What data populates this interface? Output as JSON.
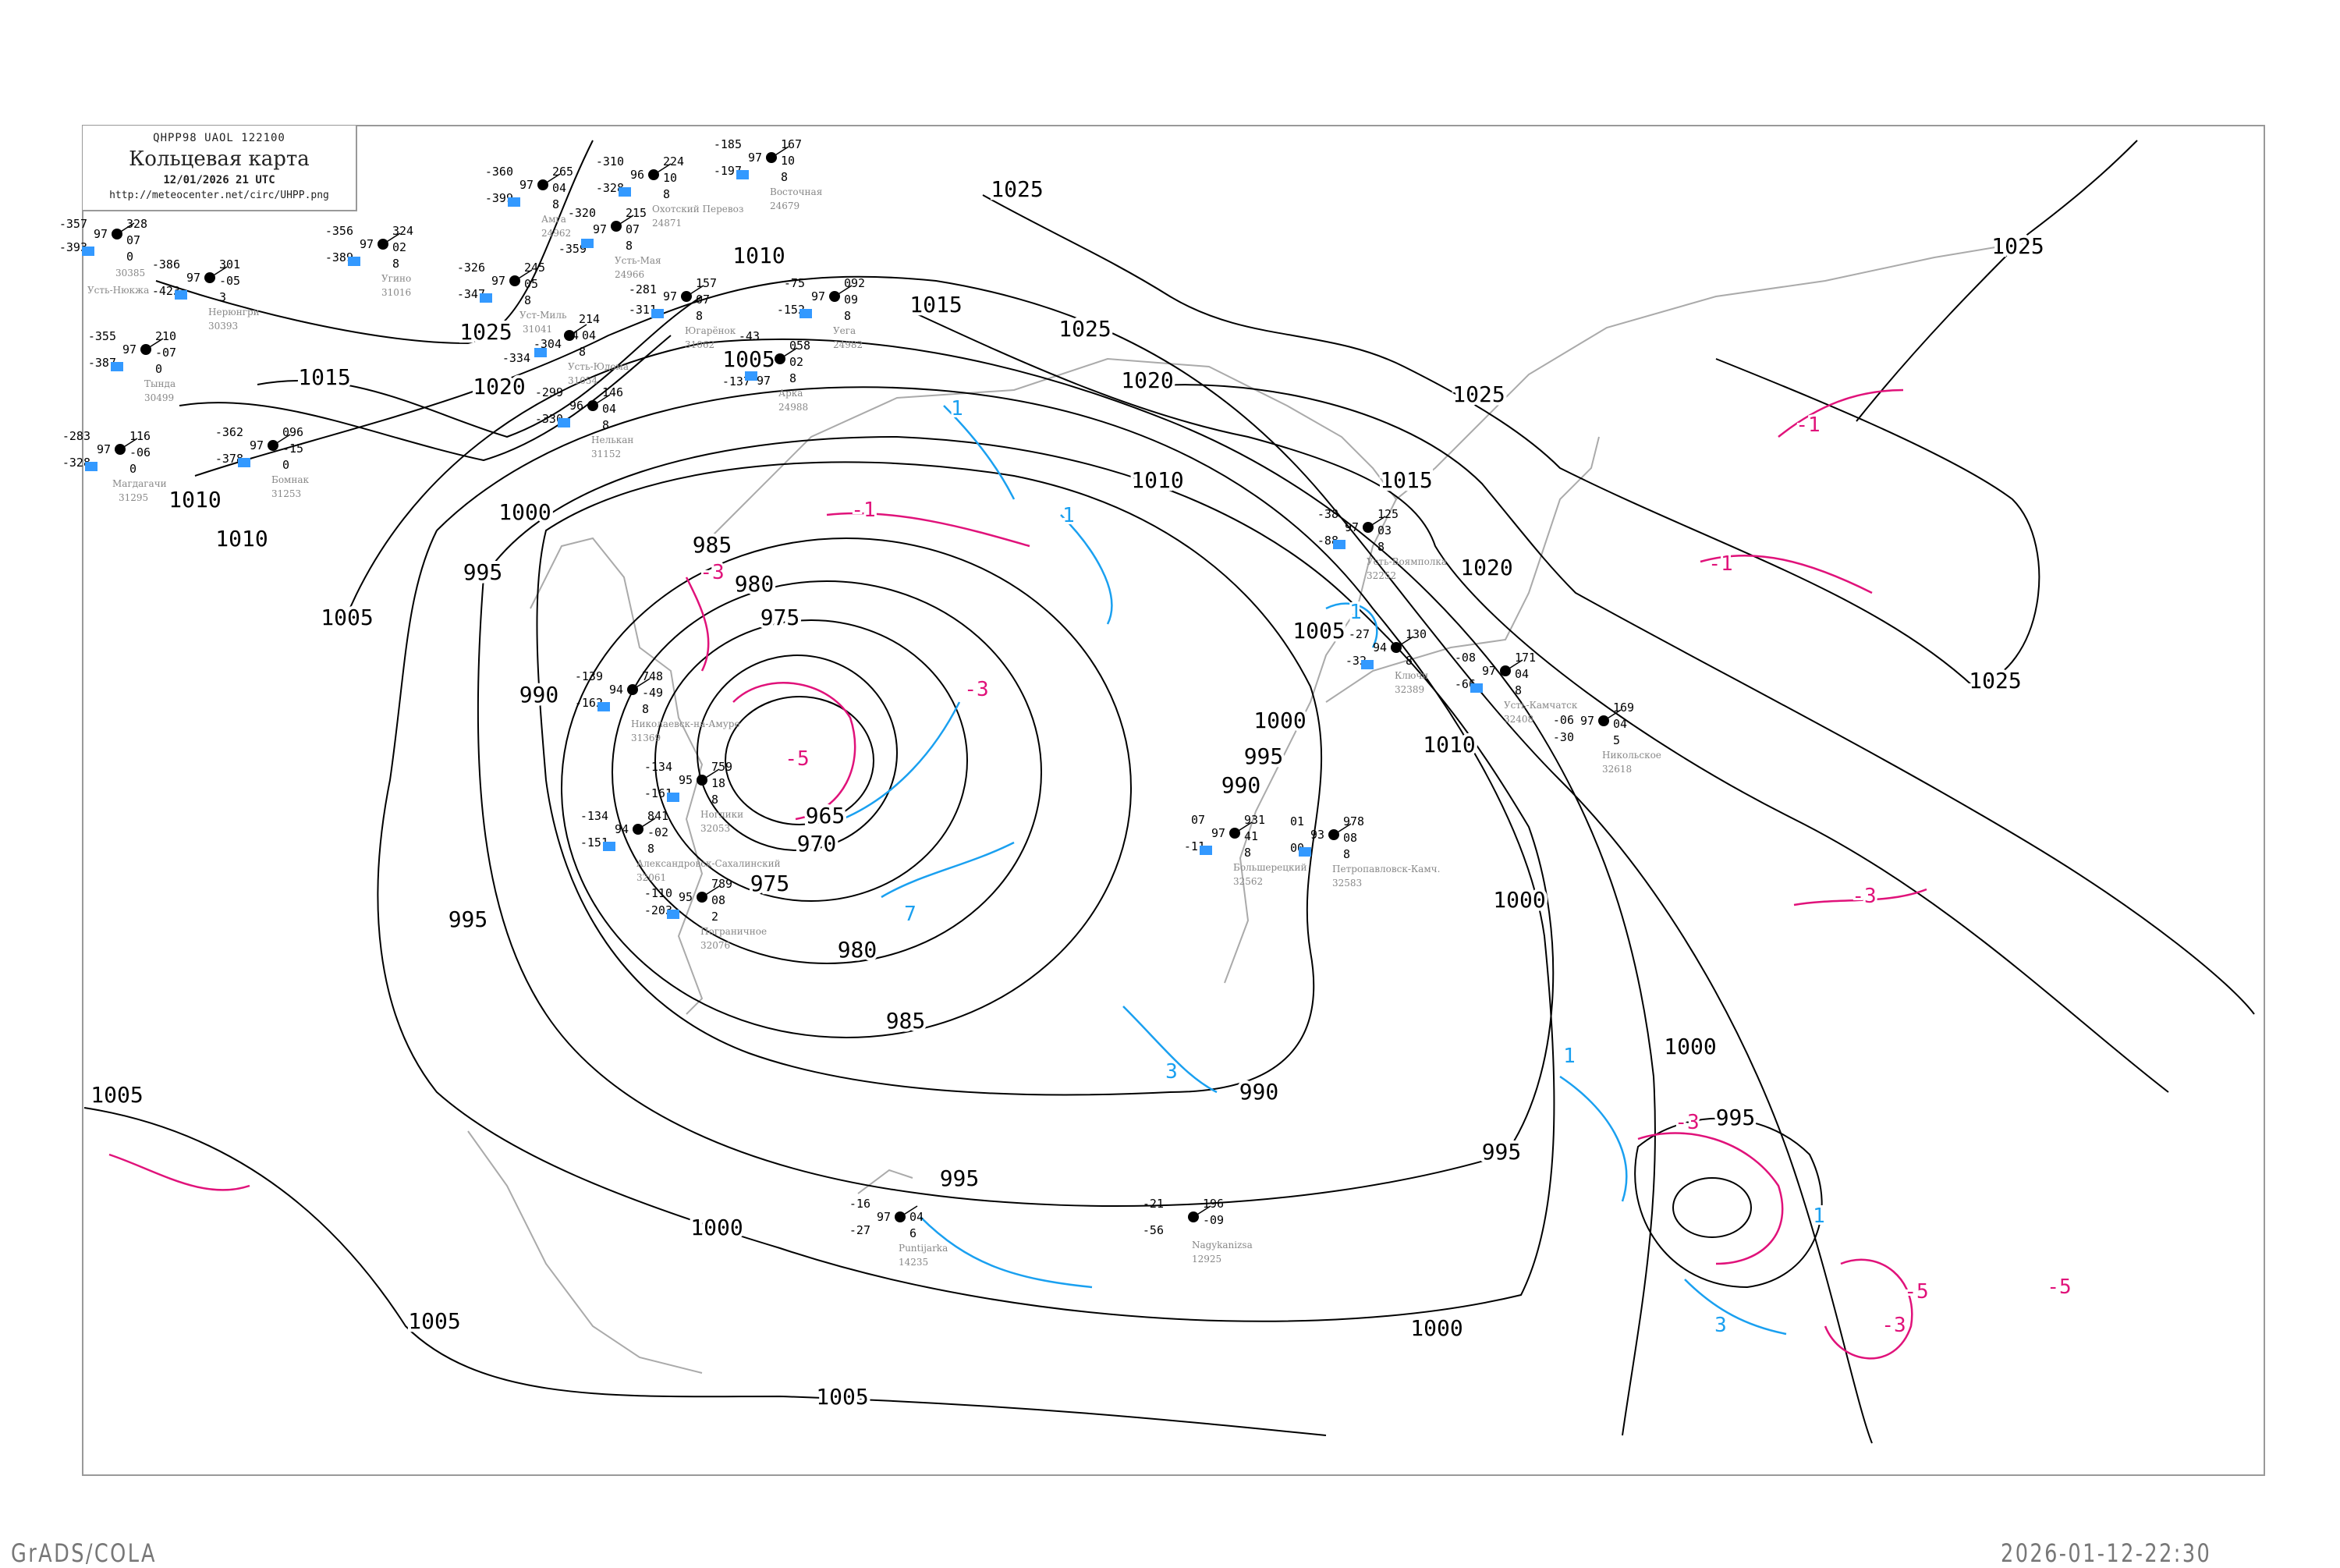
{
  "header": {
    "code_line": "QHPP98  UAOL  122100",
    "title": "Кольцевая карта",
    "datetime": "12/01/2026 21 UTC",
    "url": "http://meteocenter.net/circ/UHPP.png"
  },
  "footer": {
    "left": "GrADS/COLA",
    "right": "2026-01-12-22:30"
  },
  "colors": {
    "isobar": "#000000",
    "isotherm_negative": "#e0127a",
    "isotherm_positive": "#1aa0f0",
    "coastline": "#aaaaaa",
    "station_marker": "#3399ff"
  },
  "isobar_labels": [
    "1025",
    "1020",
    "1015",
    "1010",
    "1015",
    "1005",
    "1025",
    "1025",
    "1020",
    "1025",
    "1015",
    "1010",
    "1025",
    "1020",
    "1025",
    "1000",
    "995",
    "1005",
    "990",
    "985",
    "980",
    "975",
    "965",
    "970",
    "975",
    "980",
    "985",
    "990",
    "995",
    "1000",
    "995",
    "990",
    "1005",
    "1010",
    "1000",
    "995",
    "1000",
    "995",
    "1000",
    "1005",
    "1005",
    "1000",
    "995",
    "1010",
    "1010",
    "1005"
  ],
  "isotherm_labels": [
    "-5",
    "-3",
    "-3",
    "-1",
    "-1",
    "-1",
    "-3",
    "-5",
    "-5",
    "-3",
    "-3",
    "1",
    "1",
    "3",
    "3",
    "7",
    "1",
    "1",
    "1"
  ],
  "stations": [
    {
      "name": "Нерюнгри",
      "id": "30393",
      "t": "-386",
      "vis": "97",
      "td": "-423",
      "p": "301",
      "tend": "-05",
      "n": "3"
    },
    {
      "name": "Тында",
      "id": "30499",
      "t": "-355",
      "vis": "97",
      "td": "-387",
      "p": "210",
      "tend": "-07",
      "n": "0"
    },
    {
      "name": "Усть-Нюкжа",
      "id": "30385",
      "t": "-357",
      "vis": "97",
      "td": "-393",
      "p": "328",
      "tend": "07",
      "n": "0"
    },
    {
      "name": "Угино",
      "id": "31016",
      "t": "-356",
      "vis": "97",
      "td": "-389",
      "p": "324",
      "tend": "02",
      "n": "8"
    },
    {
      "name": "Бомнак",
      "id": "31253",
      "t": "-362",
      "vis": "97",
      "td": "-378",
      "p": "096",
      "tend": "-15",
      "n": "0"
    },
    {
      "name": "Магдагачи",
      "id": "31295",
      "t": "-283",
      "vis": "97",
      "td": "-328",
      "p": "116",
      "tend": "-06",
      "n": "0"
    },
    {
      "name": "Амга",
      "id": "24962",
      "t": "-360",
      "vis": "97",
      "td": "-399",
      "p": "265",
      "tend": "04",
      "n": "8"
    },
    {
      "name": "Усть-Мая",
      "id": "24966",
      "t": "-320",
      "vis": "97",
      "td": "-359",
      "p": "215",
      "tend": "07",
      "n": "8"
    },
    {
      "name": "Уст-Миль",
      "id": "31041",
      "t": "-326",
      "vis": "97",
      "td": "-347",
      "p": "245",
      "tend": "05",
      "n": "8"
    },
    {
      "name": "Усть-Юдома",
      "id": "31054",
      "t": "-304",
      "vis": "94",
      "td": "-334",
      "p": "214",
      "tend": "04",
      "n": "8"
    },
    {
      "name": "Югарёнок",
      "id": "31062",
      "t": "-281",
      "vis": "97",
      "td": "-311",
      "p": "157",
      "tend": "07",
      "n": "8"
    },
    {
      "name": "Нелькан",
      "id": "31152",
      "t": "-299",
      "vis": "96",
      "td": "-330",
      "p": "146",
      "tend": "04",
      "n": "8"
    },
    {
      "name": "Охотский Перевоз",
      "id": "24871",
      "t": "-310",
      "vis": "96",
      "td": "-328",
      "p": "224",
      "tend": "10",
      "n": "8"
    },
    {
      "name": "Восточная",
      "id": "24679",
      "t": "-185",
      "vis": "97",
      "td": "-197",
      "p": "167",
      "tend": "10",
      "n": "8"
    },
    {
      "name": "Уега",
      "id": "24982",
      "t": "-75",
      "vis": "97",
      "td": "-152",
      "p": "092",
      "tend": "09",
      "n": "8"
    },
    {
      "name": "Арка",
      "id": "24988",
      "t": "-43",
      "vis": "97",
      "td": "-137",
      "p": "058",
      "tend": "02",
      "n": "8"
    },
    {
      "name": "Николаевск-на-Амуре",
      "id": "31369",
      "t": "-139",
      "vis": "94",
      "td": "-162",
      "p": "748",
      "tend": "-49",
      "n": "8"
    },
    {
      "name": "Ноглики",
      "id": "32053",
      "t": "-134",
      "vis": "95",
      "td": "-161",
      "p": "759",
      "tend": "18",
      "n": "8"
    },
    {
      "name": "Александровск-Сахалинский",
      "id": "32061",
      "t": "-134",
      "vis": "94",
      "td": "-151",
      "p": "841",
      "tend": "-02",
      "n": "8"
    },
    {
      "name": "Пограничное",
      "id": "32076",
      "t": "-110",
      "vis": "95",
      "td": "-203",
      "p": "789",
      "tend": "08",
      "n": "2"
    },
    {
      "name": "Большерецкий",
      "id": "32562",
      "t": "07",
      "vis": "97",
      "td": "-11",
      "p": "931",
      "tend": "41",
      "n": "8"
    },
    {
      "name": "Петропавловск-Камч.",
      "id": "32583",
      "t": "01",
      "vis": "93",
      "td": "00",
      "p": "978",
      "tend": "08",
      "n": "8"
    },
    {
      "name": "Усть-Воямполка",
      "id": "32252",
      "t": "-38",
      "vis": "97",
      "td": "-88",
      "p": "125",
      "tend": "03",
      "n": "8"
    },
    {
      "name": "Ключи",
      "id": "32389",
      "t": "-27",
      "vis": "94",
      "td": "-32",
      "p": "130",
      "tend": "",
      "n": "8"
    },
    {
      "name": "Усть-Камчатск",
      "id": "32408",
      "t": "-08",
      "vis": "97",
      "td": "-66",
      "p": "171",
      "tend": "04",
      "n": "8"
    },
    {
      "name": "Никольское",
      "id": "32618",
      "t": "-06",
      "vis": "97",
      "td": "-30",
      "p": "169",
      "tend": "04",
      "n": "5"
    },
    {
      "name": "Puntijarka",
      "id": "14235",
      "t": "-16",
      "vis": "97",
      "td": "-27",
      "p": "",
      "tend": "04",
      "n": "6"
    },
    {
      "name": "Nagykanizsa",
      "id": "12925",
      "t": "-21",
      "vis": "",
      "td": "-56",
      "p": "196",
      "tend": "-09",
      "n": ""
    }
  ]
}
